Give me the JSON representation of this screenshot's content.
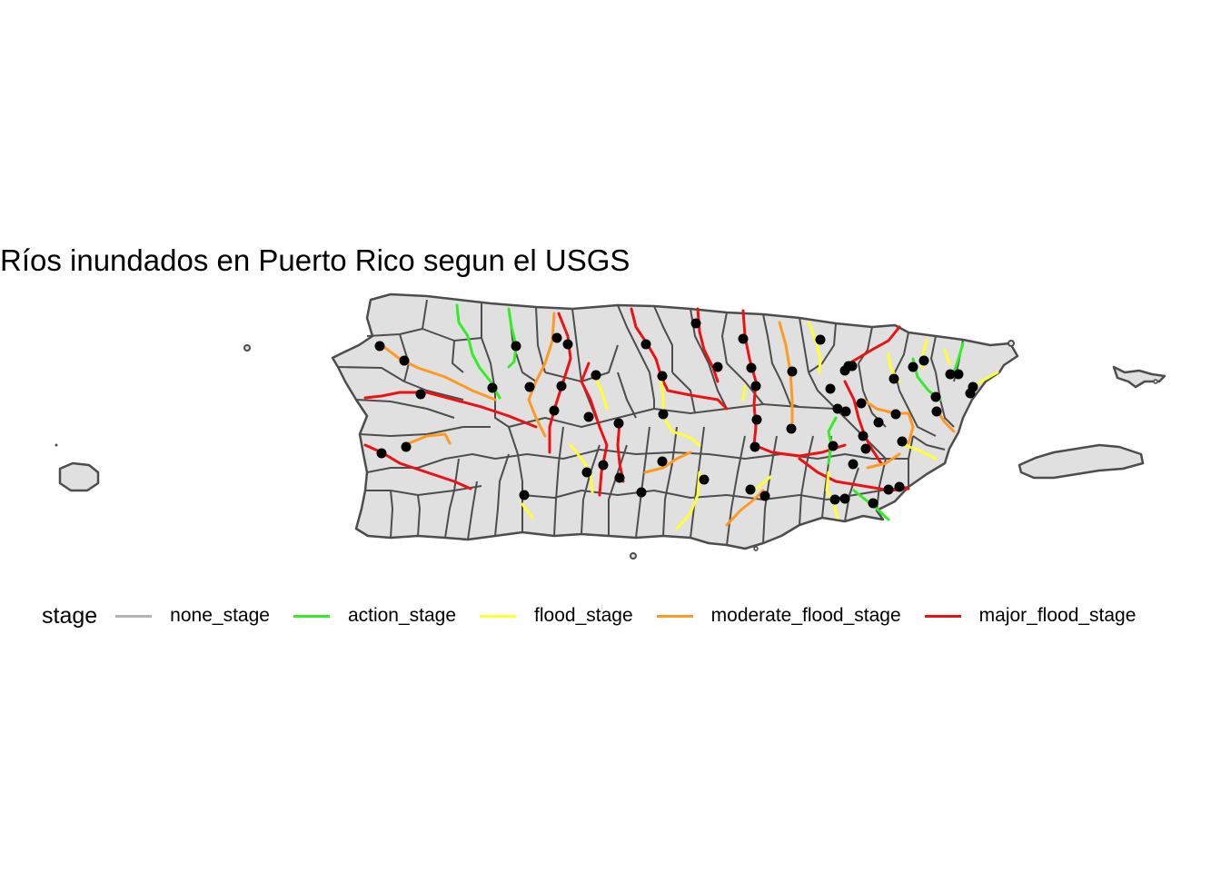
{
  "title": "Ríos inundados en Puerto Rico segun el USGS",
  "legend": {
    "title": "stage",
    "items": [
      {
        "key": "none_stage",
        "label": "none_stage",
        "color": "#b3b3b3"
      },
      {
        "key": "action_stage",
        "label": "action_stage",
        "color": "#33ee22"
      },
      {
        "key": "flood_stage",
        "label": "flood_stage",
        "color": "#ffff33"
      },
      {
        "key": "moderate_flood_stage",
        "label": "moderate_flood_stage",
        "color": "#ff9922"
      },
      {
        "key": "major_flood_stage",
        "label": "major_flood_stage",
        "color": "#ee1111"
      }
    ]
  },
  "colors": {
    "land_fill": "#e0e0e0",
    "border": "#4d4d4d",
    "gauge_point": "#000000"
  }
}
